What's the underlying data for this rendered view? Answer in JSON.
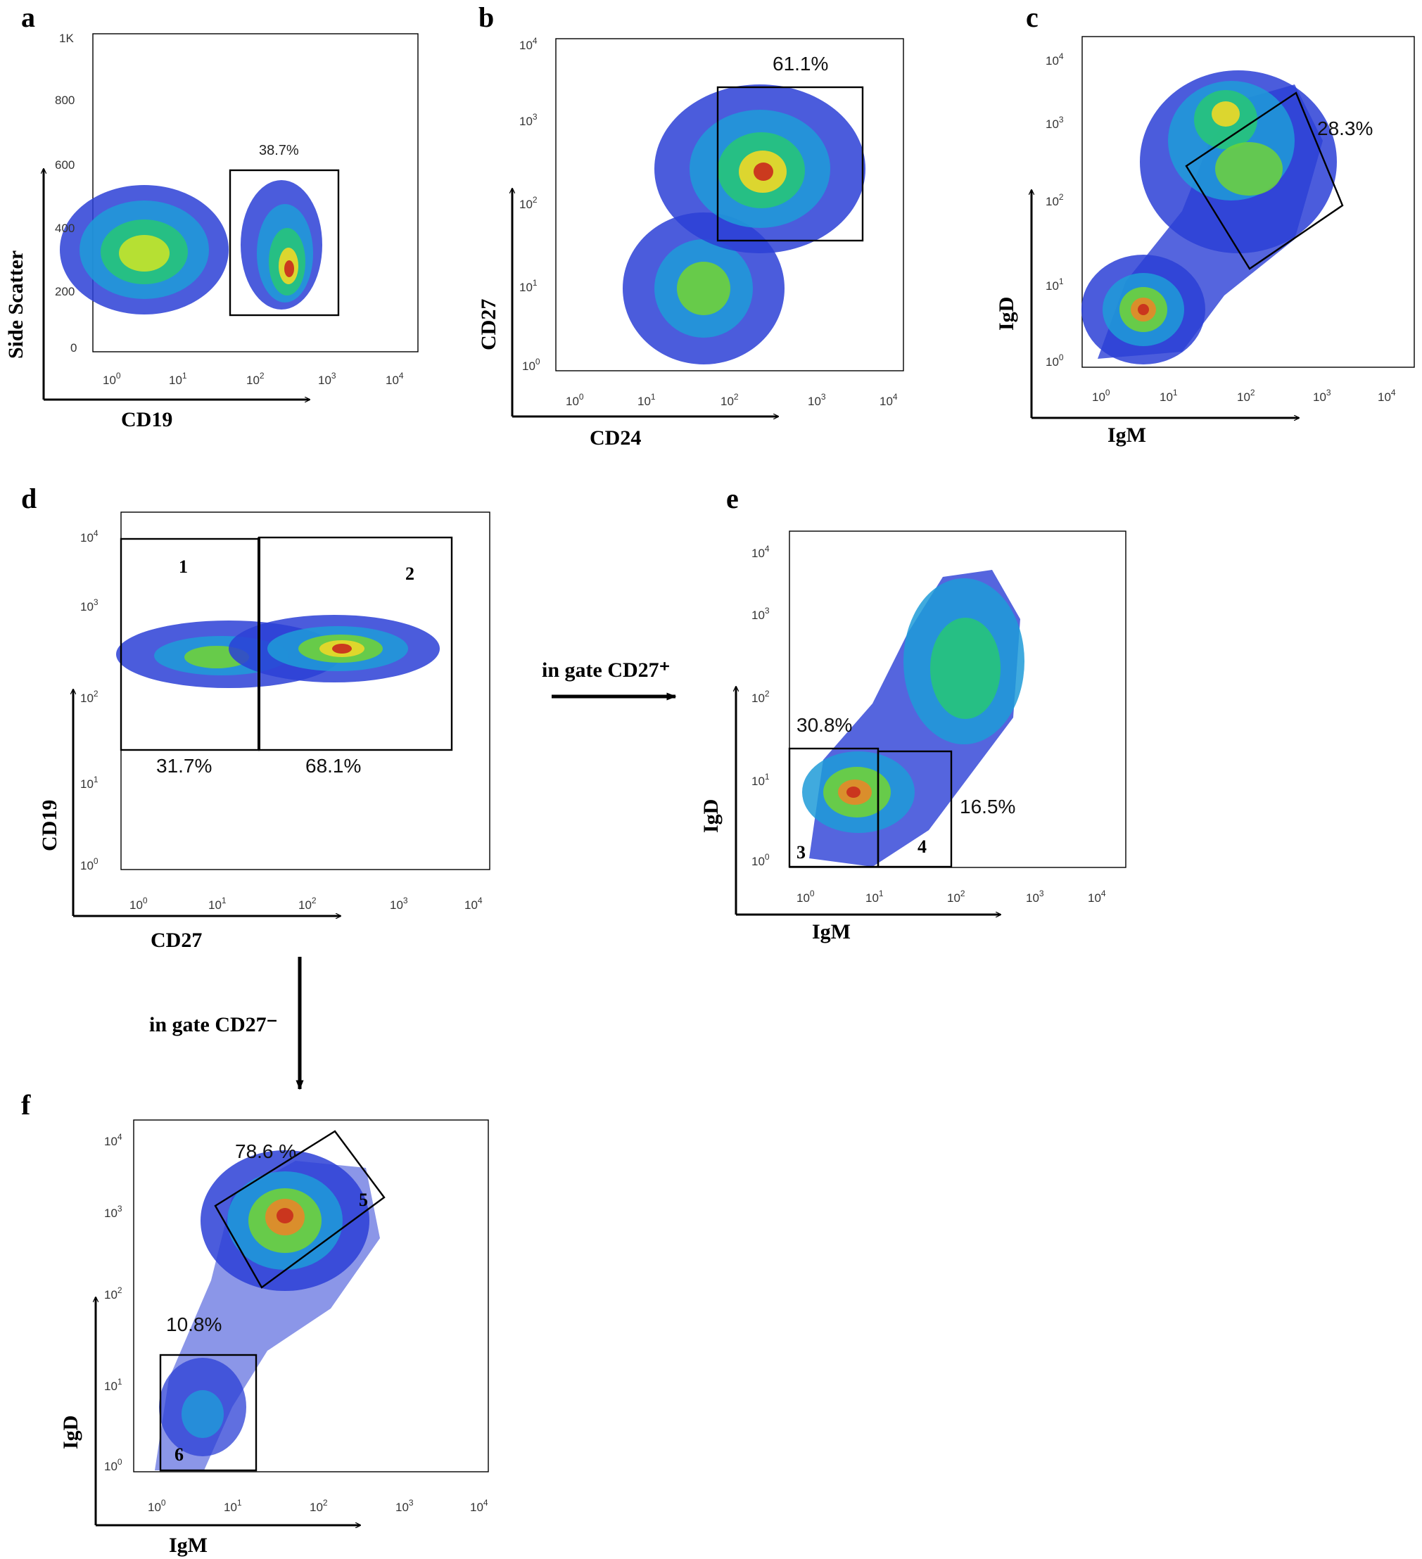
{
  "figure": {
    "panels": [
      {
        "id": "a",
        "label": "a"
      },
      {
        "id": "b",
        "label": "b"
      },
      {
        "id": "c",
        "label": "c"
      },
      {
        "id": "d",
        "label": "d"
      },
      {
        "id": "e",
        "label": "e"
      },
      {
        "id": "f",
        "label": "f"
      }
    ],
    "notes": {
      "d_to_e": "in gate CD27⁺",
      "d_to_f": "in gate CD27⁻"
    }
  },
  "chart_data": [
    {
      "type": "scatter",
      "panel": "a",
      "xlabel": "CD19",
      "ylabel": "Side Scatter",
      "x_scale": "log",
      "xticks": [
        "10^0",
        "10^1",
        "10^2",
        "10^3",
        "10^4"
      ],
      "y_scale": "linear",
      "yticks": [
        "0",
        "200",
        "400",
        "600",
        "800",
        "1K"
      ],
      "ylim": [
        0,
        1024
      ],
      "populations": [
        {
          "center": [
            3,
            320
          ],
          "spread": "broad"
        },
        {
          "center": [
            220,
            280
          ],
          "spread": "compact"
        }
      ],
      "gates": [
        {
          "shape": "rectangle",
          "x": [
            50,
            1100
          ],
          "y": [
            120,
            570
          ],
          "label": "38.7%"
        }
      ]
    },
    {
      "type": "scatter",
      "panel": "b",
      "xlabel": "CD24",
      "ylabel": "CD27",
      "x_scale": "log",
      "y_scale": "log",
      "xticks": [
        "10^0",
        "10^1",
        "10^2",
        "10^3",
        "10^4"
      ],
      "yticks": [
        "10^0",
        "10^1",
        "10^2",
        "10^3",
        "10^4"
      ],
      "populations": [
        {
          "center": [
            200,
            200
          ]
        },
        {
          "center": [
            60,
            10
          ]
        }
      ],
      "gates": [
        {
          "shape": "rectangle",
          "x": [
            70,
            3500
          ],
          "y": [
            35,
            2500
          ],
          "label": "61.1%"
        }
      ]
    },
    {
      "type": "scatter",
      "panel": "c",
      "xlabel": "IgM",
      "ylabel": "IgD",
      "x_scale": "log",
      "y_scale": "log",
      "xticks": [
        "10^0",
        "10^1",
        "10^2",
        "10^3",
        "10^4"
      ],
      "yticks": [
        "10^0",
        "10^1",
        "10^2",
        "10^3",
        "10^4"
      ],
      "populations": [
        {
          "center": [
            35,
            900
          ]
        },
        {
          "center": [
            80,
            300
          ]
        },
        {
          "center": [
            4,
            4
          ]
        }
      ],
      "gates": [
        {
          "shape": "rotated-rectangle",
          "label": "28.3%"
        }
      ]
    },
    {
      "type": "scatter",
      "panel": "d",
      "xlabel": "CD27",
      "ylabel": "CD19",
      "x_scale": "log",
      "y_scale": "log",
      "xticks": [
        "10^0",
        "10^1",
        "10^2",
        "10^3",
        "10^4"
      ],
      "yticks": [
        "10^0",
        "10^1",
        "10^2",
        "10^3",
        "10^4"
      ],
      "populations": [
        {
          "center": [
            9,
            230
          ]
        },
        {
          "center": [
            250,
            260
          ]
        }
      ],
      "gates": [
        {
          "shape": "rectangle",
          "id": "1",
          "label": "31.7%"
        },
        {
          "shape": "rectangle",
          "id": "2",
          "label": "68.1%"
        }
      ]
    },
    {
      "type": "scatter",
      "panel": "e",
      "xlabel": "IgM",
      "ylabel": "IgD",
      "x_scale": "log",
      "y_scale": "log",
      "xticks": [
        "10^0",
        "10^1",
        "10^2",
        "10^3",
        "10^4"
      ],
      "yticks": [
        "10^0",
        "10^1",
        "10^2",
        "10^3",
        "10^4"
      ],
      "populations": [
        {
          "center": [
            5,
            7
          ]
        },
        {
          "center": [
            120,
            200
          ]
        }
      ],
      "gates": [
        {
          "shape": "rectangle",
          "id": "3",
          "label": "30.8%"
        },
        {
          "shape": "rectangle",
          "id": "4",
          "label": "16.5%"
        }
      ]
    },
    {
      "type": "scatter",
      "panel": "f",
      "xlabel": "IgM",
      "ylabel": "IgD",
      "x_scale": "log",
      "y_scale": "log",
      "xticks": [
        "10^0",
        "10^1",
        "10^2",
        "10^3",
        "10^4"
      ],
      "yticks": [
        "10^0",
        "10^1",
        "10^2",
        "10^3",
        "10^4"
      ],
      "populations": [
        {
          "center": [
            30,
            800
          ]
        },
        {
          "center": [
            4,
            4
          ]
        }
      ],
      "gates": [
        {
          "shape": "rotated-rectangle",
          "id": "5",
          "label": "78.6 %"
        },
        {
          "shape": "rectangle",
          "id": "6",
          "label": "10.8%"
        }
      ]
    }
  ]
}
